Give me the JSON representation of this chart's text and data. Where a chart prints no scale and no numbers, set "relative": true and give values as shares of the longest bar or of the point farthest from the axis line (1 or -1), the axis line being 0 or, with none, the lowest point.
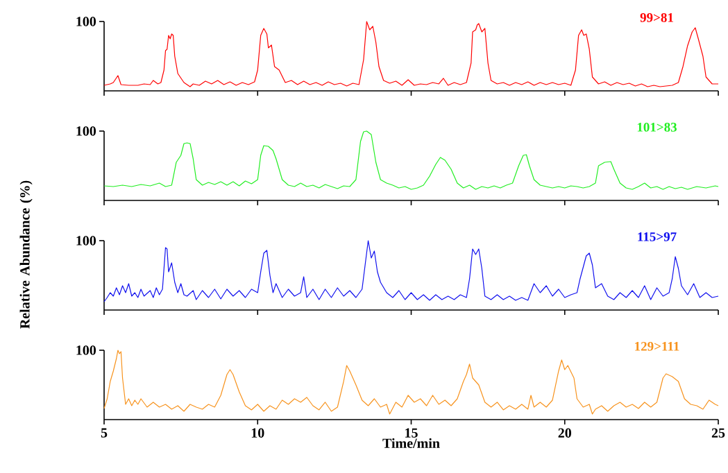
{
  "chart_data": [
    {
      "type": "line",
      "relative": true,
      "xlim": [
        5,
        25
      ],
      "xticks": [
        5,
        10,
        15,
        20,
        25
      ],
      "tick_labels": false,
      "annotations": [
        "100"
      ],
      "series": [
        {
          "name": "99>81",
          "color": "#ff0000",
          "x": [
            5.0,
            5.2,
            5.3,
            5.45,
            5.55,
            5.8,
            6.1,
            6.3,
            6.5,
            6.6,
            6.75,
            6.85,
            6.95,
            7.0,
            7.05,
            7.1,
            7.15,
            7.2,
            7.25,
            7.3,
            7.4,
            7.6,
            7.8,
            7.9,
            8.1,
            8.3,
            8.5,
            8.7,
            8.9,
            9.1,
            9.3,
            9.5,
            9.7,
            9.9,
            10.0,
            10.1,
            10.2,
            10.3,
            10.35,
            10.45,
            10.55,
            10.7,
            10.9,
            11.1,
            11.3,
            11.5,
            11.7,
            11.9,
            12.1,
            12.3,
            12.5,
            12.7,
            12.9,
            13.1,
            13.3,
            13.45,
            13.55,
            13.65,
            13.75,
            13.85,
            13.95,
            14.1,
            14.3,
            14.5,
            14.7,
            14.9,
            15.1,
            15.3,
            15.5,
            15.7,
            15.9,
            16.05,
            16.2,
            16.4,
            16.6,
            16.8,
            16.95,
            17.0,
            17.1,
            17.15,
            17.2,
            17.3,
            17.4,
            17.5,
            17.6,
            17.8,
            18.0,
            18.2,
            18.4,
            18.6,
            18.8,
            19.0,
            19.2,
            19.4,
            19.6,
            19.8,
            20.0,
            20.2,
            20.35,
            20.45,
            20.55,
            20.62,
            20.7,
            20.8,
            20.9,
            21.1,
            21.3,
            21.5,
            21.7,
            21.9,
            22.1,
            22.3,
            22.5,
            22.7,
            22.9,
            23.1,
            23.3,
            23.5,
            23.7,
            23.85,
            24.0,
            24.15,
            24.25,
            24.35,
            24.5,
            24.6,
            24.8,
            25.0
          ],
          "values": [
            0.08,
            0.1,
            0.12,
            0.22,
            0.09,
            0.08,
            0.08,
            0.1,
            0.09,
            0.15,
            0.1,
            0.12,
            0.3,
            0.58,
            0.6,
            0.8,
            0.75,
            0.82,
            0.8,
            0.5,
            0.25,
            0.12,
            0.06,
            0.1,
            0.08,
            0.14,
            0.1,
            0.15,
            0.09,
            0.13,
            0.08,
            0.12,
            0.09,
            0.13,
            0.3,
            0.8,
            0.9,
            0.82,
            0.62,
            0.66,
            0.35,
            0.3,
            0.12,
            0.15,
            0.09,
            0.14,
            0.09,
            0.12,
            0.08,
            0.13,
            0.09,
            0.11,
            0.07,
            0.11,
            0.09,
            0.45,
            1,
            0.88,
            0.93,
            0.7,
            0.35,
            0.15,
            0.11,
            0.14,
            0.08,
            0.16,
            0.08,
            0.1,
            0.09,
            0.12,
            0.1,
            0.18,
            0.08,
            0.12,
            0.09,
            0.12,
            0.4,
            0.85,
            0.88,
            0.95,
            0.97,
            0.85,
            0.9,
            0.4,
            0.15,
            0.1,
            0.12,
            0.08,
            0.12,
            0.09,
            0.13,
            0.08,
            0.12,
            0.09,
            0.12,
            0.09,
            0.11,
            0.08,
            0.3,
            0.8,
            0.88,
            0.8,
            0.82,
            0.6,
            0.2,
            0.1,
            0.13,
            0.08,
            0.12,
            0.09,
            0.11,
            0.07,
            0.1,
            0.06,
            0.08,
            0.06,
            0.07,
            0.08,
            0.12,
            0.35,
            0.65,
            0.85,
            0.91,
            0.75,
            0.5,
            0.2,
            0.1,
            0.1
          ]
        }
      ]
    },
    {
      "type": "line",
      "relative": true,
      "xlim": [
        5,
        25
      ],
      "xticks": [
        5,
        10,
        15,
        20,
        25
      ],
      "tick_labels": false,
      "ylabel": "Relative Abundance (%)",
      "annotations": [
        "100"
      ],
      "series": [
        {
          "name": "101>83",
          "color": "#22ee22",
          "x": [
            5.0,
            5.3,
            5.6,
            5.9,
            6.2,
            6.5,
            6.8,
            7.0,
            7.2,
            7.35,
            7.5,
            7.6,
            7.7,
            7.8,
            7.9,
            8.0,
            8.2,
            8.4,
            8.6,
            8.8,
            9.0,
            9.2,
            9.4,
            9.6,
            9.8,
            10.0,
            10.1,
            10.2,
            10.35,
            10.5,
            10.6,
            10.8,
            11.0,
            11.2,
            11.4,
            11.6,
            11.8,
            12.0,
            12.2,
            12.4,
            12.6,
            12.8,
            13.0,
            13.2,
            13.35,
            13.45,
            13.55,
            13.7,
            13.85,
            14.0,
            14.2,
            14.4,
            14.6,
            14.8,
            15.0,
            15.2,
            15.4,
            15.6,
            15.8,
            15.95,
            16.1,
            16.3,
            16.5,
            16.7,
            16.9,
            17.1,
            17.3,
            17.5,
            17.7,
            17.9,
            18.1,
            18.3,
            18.5,
            18.65,
            18.75,
            18.85,
            19.0,
            19.2,
            19.4,
            19.6,
            19.8,
            20.0,
            20.2,
            20.4,
            20.6,
            20.8,
            21.0,
            21.1,
            21.3,
            21.5,
            21.6,
            21.8,
            22.0,
            22.2,
            22.4,
            22.6,
            22.8,
            23.0,
            23.2,
            23.4,
            23.6,
            23.8,
            24.0,
            24.3,
            24.6,
            24.9,
            25.0
          ],
          "values": [
            0.21,
            0.2,
            0.22,
            0.2,
            0.23,
            0.21,
            0.25,
            0.2,
            0.22,
            0.55,
            0.65,
            0.82,
            0.83,
            0.82,
            0.6,
            0.3,
            0.22,
            0.26,
            0.23,
            0.27,
            0.22,
            0.27,
            0.21,
            0.28,
            0.24,
            0.3,
            0.65,
            0.79,
            0.78,
            0.72,
            0.6,
            0.3,
            0.22,
            0.2,
            0.25,
            0.2,
            0.22,
            0.18,
            0.23,
            0.2,
            0.17,
            0.21,
            0.2,
            0.3,
            0.85,
            0.99,
            1,
            0.95,
            0.55,
            0.3,
            0.25,
            0.22,
            0.18,
            0.2,
            0.16,
            0.18,
            0.22,
            0.35,
            0.52,
            0.62,
            0.58,
            0.45,
            0.25,
            0.18,
            0.22,
            0.16,
            0.2,
            0.18,
            0.21,
            0.18,
            0.22,
            0.25,
            0.5,
            0.65,
            0.66,
            0.5,
            0.3,
            0.22,
            0.2,
            0.18,
            0.2,
            0.18,
            0.21,
            0.2,
            0.18,
            0.2,
            0.25,
            0.5,
            0.55,
            0.56,
            0.45,
            0.25,
            0.18,
            0.16,
            0.2,
            0.25,
            0.18,
            0.2,
            0.16,
            0.2,
            0.17,
            0.19,
            0.16,
            0.2,
            0.18,
            0.21,
            0.2
          ]
        }
      ]
    },
    {
      "type": "line",
      "relative": true,
      "xlim": [
        5,
        25
      ],
      "xticks": [
        5,
        10,
        15,
        20,
        25
      ],
      "tick_labels": false,
      "annotations": [
        "100"
      ],
      "series": [
        {
          "name": "115>97",
          "color": "#1010ee",
          "x": [
            5.0,
            5.1,
            5.2,
            5.3,
            5.4,
            5.5,
            5.6,
            5.7,
            5.8,
            5.9,
            6.0,
            6.1,
            6.2,
            6.3,
            6.5,
            6.6,
            6.7,
            6.8,
            6.9,
            7.0,
            7.05,
            7.1,
            7.2,
            7.3,
            7.4,
            7.5,
            7.6,
            7.7,
            7.9,
            8.0,
            8.2,
            8.4,
            8.6,
            8.8,
            9.0,
            9.2,
            9.4,
            9.6,
            9.8,
            10.0,
            10.1,
            10.2,
            10.3,
            10.4,
            10.5,
            10.6,
            10.8,
            11.0,
            11.2,
            11.4,
            11.5,
            11.6,
            11.8,
            12.0,
            12.2,
            12.4,
            12.6,
            12.8,
            13.0,
            13.2,
            13.4,
            13.5,
            13.6,
            13.7,
            13.8,
            13.9,
            14.0,
            14.2,
            14.4,
            14.6,
            14.8,
            15.0,
            15.2,
            15.4,
            15.6,
            15.8,
            16.0,
            16.2,
            16.4,
            16.6,
            16.8,
            16.9,
            17.0,
            17.1,
            17.2,
            17.3,
            17.4,
            17.6,
            17.8,
            18.0,
            18.2,
            18.4,
            18.6,
            18.8,
            19.0,
            19.2,
            19.4,
            19.6,
            19.8,
            20.0,
            20.2,
            20.4,
            20.5,
            20.7,
            20.8,
            20.9,
            21.0,
            21.2,
            21.4,
            21.6,
            21.8,
            22.0,
            22.2,
            22.4,
            22.6,
            22.8,
            23.0,
            23.2,
            23.4,
            23.5,
            23.6,
            23.7,
            23.8,
            24.0,
            24.2,
            24.4,
            24.6,
            24.8,
            25.0
          ],
          "values": [
            0.12,
            0.18,
            0.25,
            0.2,
            0.32,
            0.22,
            0.35,
            0.25,
            0.38,
            0.2,
            0.25,
            0.18,
            0.3,
            0.2,
            0.28,
            0.18,
            0.32,
            0.22,
            0.3,
            0.9,
            0.88,
            0.55,
            0.68,
            0.4,
            0.25,
            0.38,
            0.22,
            0.2,
            0.28,
            0.15,
            0.28,
            0.18,
            0.3,
            0.16,
            0.3,
            0.2,
            0.28,
            0.18,
            0.3,
            0.25,
            0.55,
            0.82,
            0.86,
            0.5,
            0.25,
            0.38,
            0.18,
            0.3,
            0.2,
            0.25,
            0.48,
            0.18,
            0.3,
            0.15,
            0.3,
            0.18,
            0.32,
            0.2,
            0.28,
            0.18,
            0.3,
            0.65,
            1,
            0.75,
            0.85,
            0.55,
            0.4,
            0.25,
            0.18,
            0.28,
            0.15,
            0.25,
            0.15,
            0.22,
            0.14,
            0.22,
            0.15,
            0.2,
            0.15,
            0.22,
            0.18,
            0.45,
            0.88,
            0.8,
            0.88,
            0.6,
            0.2,
            0.15,
            0.22,
            0.15,
            0.2,
            0.14,
            0.18,
            0.14,
            0.38,
            0.25,
            0.35,
            0.2,
            0.3,
            0.18,
            0.22,
            0.25,
            0.45,
            0.78,
            0.82,
            0.65,
            0.32,
            0.38,
            0.2,
            0.15,
            0.25,
            0.18,
            0.28,
            0.18,
            0.35,
            0.15,
            0.32,
            0.2,
            0.25,
            0.45,
            0.77,
            0.6,
            0.35,
            0.22,
            0.38,
            0.18,
            0.25,
            0.18,
            0.2
          ]
        }
      ]
    },
    {
      "type": "line",
      "relative": true,
      "xlim": [
        5,
        25
      ],
      "xticks": [
        5,
        10,
        15,
        20,
        25
      ],
      "tick_labels": "x",
      "xlabel": "Time/min",
      "annotations": [
        "100"
      ],
      "series": [
        {
          "name": "129>111",
          "color": "#f7931e",
          "x": [
            5.0,
            5.1,
            5.2,
            5.3,
            5.4,
            5.45,
            5.5,
            5.55,
            5.6,
            5.7,
            5.8,
            5.9,
            6.0,
            6.1,
            6.2,
            6.4,
            6.6,
            6.8,
            7.0,
            7.2,
            7.4,
            7.6,
            7.8,
            8.0,
            8.2,
            8.4,
            8.6,
            8.8,
            9.0,
            9.1,
            9.2,
            9.4,
            9.6,
            9.8,
            10.0,
            10.2,
            10.4,
            10.6,
            10.8,
            11.0,
            11.2,
            11.4,
            11.6,
            11.8,
            12.0,
            12.2,
            12.4,
            12.6,
            12.8,
            12.9,
            13.0,
            13.2,
            13.4,
            13.6,
            13.8,
            14.0,
            14.2,
            14.3,
            14.5,
            14.7,
            14.9,
            15.1,
            15.3,
            15.5,
            15.7,
            15.9,
            16.1,
            16.3,
            16.5,
            16.7,
            16.8,
            16.9,
            17.0,
            17.2,
            17.4,
            17.6,
            17.8,
            18.0,
            18.2,
            18.4,
            18.6,
            18.8,
            18.9,
            19.0,
            19.2,
            19.4,
            19.6,
            19.8,
            19.9,
            20.0,
            20.1,
            20.3,
            20.4,
            20.6,
            20.8,
            20.9,
            21.0,
            21.2,
            21.4,
            21.6,
            21.8,
            22.0,
            22.2,
            22.4,
            22.6,
            22.8,
            23.0,
            23.2,
            23.3,
            23.5,
            23.7,
            23.9,
            24.1,
            24.3,
            24.5,
            24.7,
            24.9,
            25.0
          ],
          "values": [
            0.16,
            0.3,
            0.55,
            0.7,
            0.88,
            1,
            0.95,
            0.98,
            0.6,
            0.22,
            0.3,
            0.2,
            0.28,
            0.22,
            0.3,
            0.18,
            0.25,
            0.18,
            0.22,
            0.15,
            0.2,
            0.12,
            0.22,
            0.18,
            0.15,
            0.22,
            0.18,
            0.35,
            0.65,
            0.72,
            0.65,
            0.4,
            0.2,
            0.14,
            0.22,
            0.12,
            0.2,
            0.15,
            0.28,
            0.22,
            0.3,
            0.25,
            0.32,
            0.2,
            0.14,
            0.25,
            0.12,
            0.18,
            0.55,
            0.78,
            0.7,
            0.5,
            0.28,
            0.2,
            0.3,
            0.18,
            0.22,
            0.08,
            0.25,
            0.18,
            0.35,
            0.25,
            0.3,
            0.2,
            0.35,
            0.22,
            0.28,
            0.2,
            0.3,
            0.55,
            0.65,
            0.8,
            0.6,
            0.5,
            0.25,
            0.18,
            0.25,
            0.14,
            0.2,
            0.15,
            0.22,
            0.15,
            0.35,
            0.18,
            0.25,
            0.18,
            0.28,
            0.7,
            0.86,
            0.72,
            0.78,
            0.6,
            0.3,
            0.18,
            0.22,
            0.08,
            0.15,
            0.2,
            0.12,
            0.2,
            0.25,
            0.18,
            0.22,
            0.16,
            0.25,
            0.18,
            0.25,
            0.6,
            0.66,
            0.62,
            0.55,
            0.3,
            0.22,
            0.2,
            0.15,
            0.28,
            0.22,
            0.2
          ]
        }
      ]
    }
  ]
}
